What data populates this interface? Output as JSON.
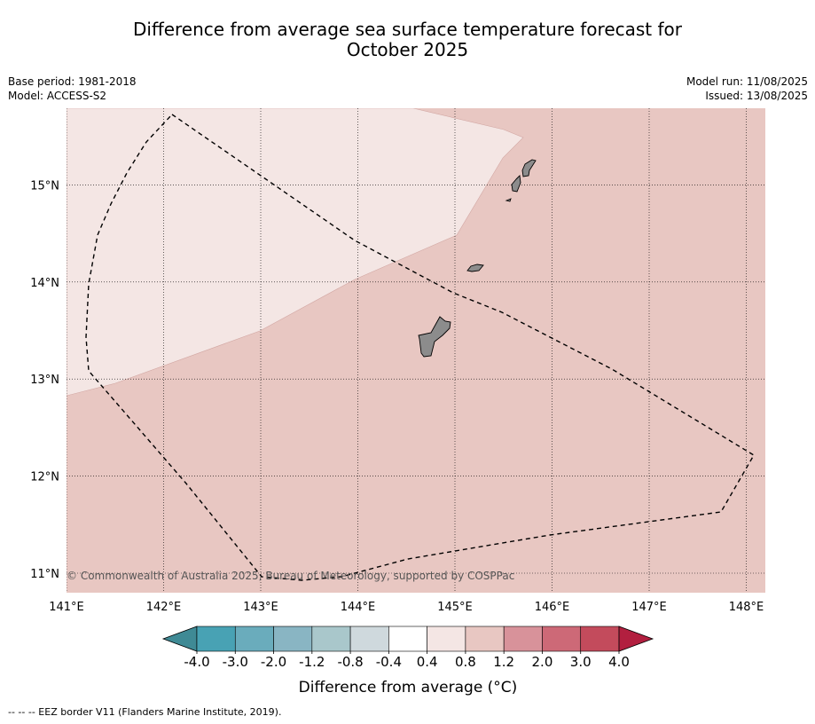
{
  "title": {
    "line1": "Difference from average sea surface temperature forecast for",
    "line2": "October 2025"
  },
  "meta": {
    "base_period": "Base period: 1981-2018",
    "model": "Model: ACCESS-S2",
    "model_run": "Model run: 11/08/2025",
    "issued": "Issued: 13/08/2025"
  },
  "map": {
    "lon_ticks": [
      141,
      142,
      143,
      144,
      145,
      146,
      147,
      148
    ],
    "lat_ticks": [
      11,
      12,
      13,
      14,
      15
    ],
    "lon_labels": [
      "141°E",
      "142°E",
      "143°E",
      "144°E",
      "145°E",
      "146°E",
      "147°E",
      "148°E"
    ],
    "lat_labels": [
      "11°N",
      "12°N",
      "13°N",
      "14°N",
      "15°N"
    ],
    "background_color": "#e8c7c2",
    "anomaly_region_color": "#f4e6e4",
    "land_color": "#8c8c8c",
    "copyright": "© Commonwealth of Australia 2025, Bureau of Meteorology, supported by COSPPac"
  },
  "colorbar": {
    "tick_labels": [
      "-4.0",
      "-3.0",
      "-2.0",
      "-1.2",
      "-0.8",
      "-0.4",
      "0.4",
      "0.8",
      "1.2",
      "2.0",
      "3.0",
      "4.0"
    ],
    "colors": [
      "#48a2b4",
      "#6aacbc",
      "#89b5c3",
      "#a9c7cb",
      "#cfd9dd",
      "#ffffff",
      "#f4e6e4",
      "#e8c7c2",
      "#d8929a",
      "#cd6977",
      "#c34b5c"
    ],
    "under_color": "#3f8a95",
    "over_color": "#b21f3f",
    "label": "Difference from average (°C)"
  },
  "footer": {
    "legend": "--  --  -- EEZ border V11 (Flanders Marine Institute, 2019)."
  }
}
